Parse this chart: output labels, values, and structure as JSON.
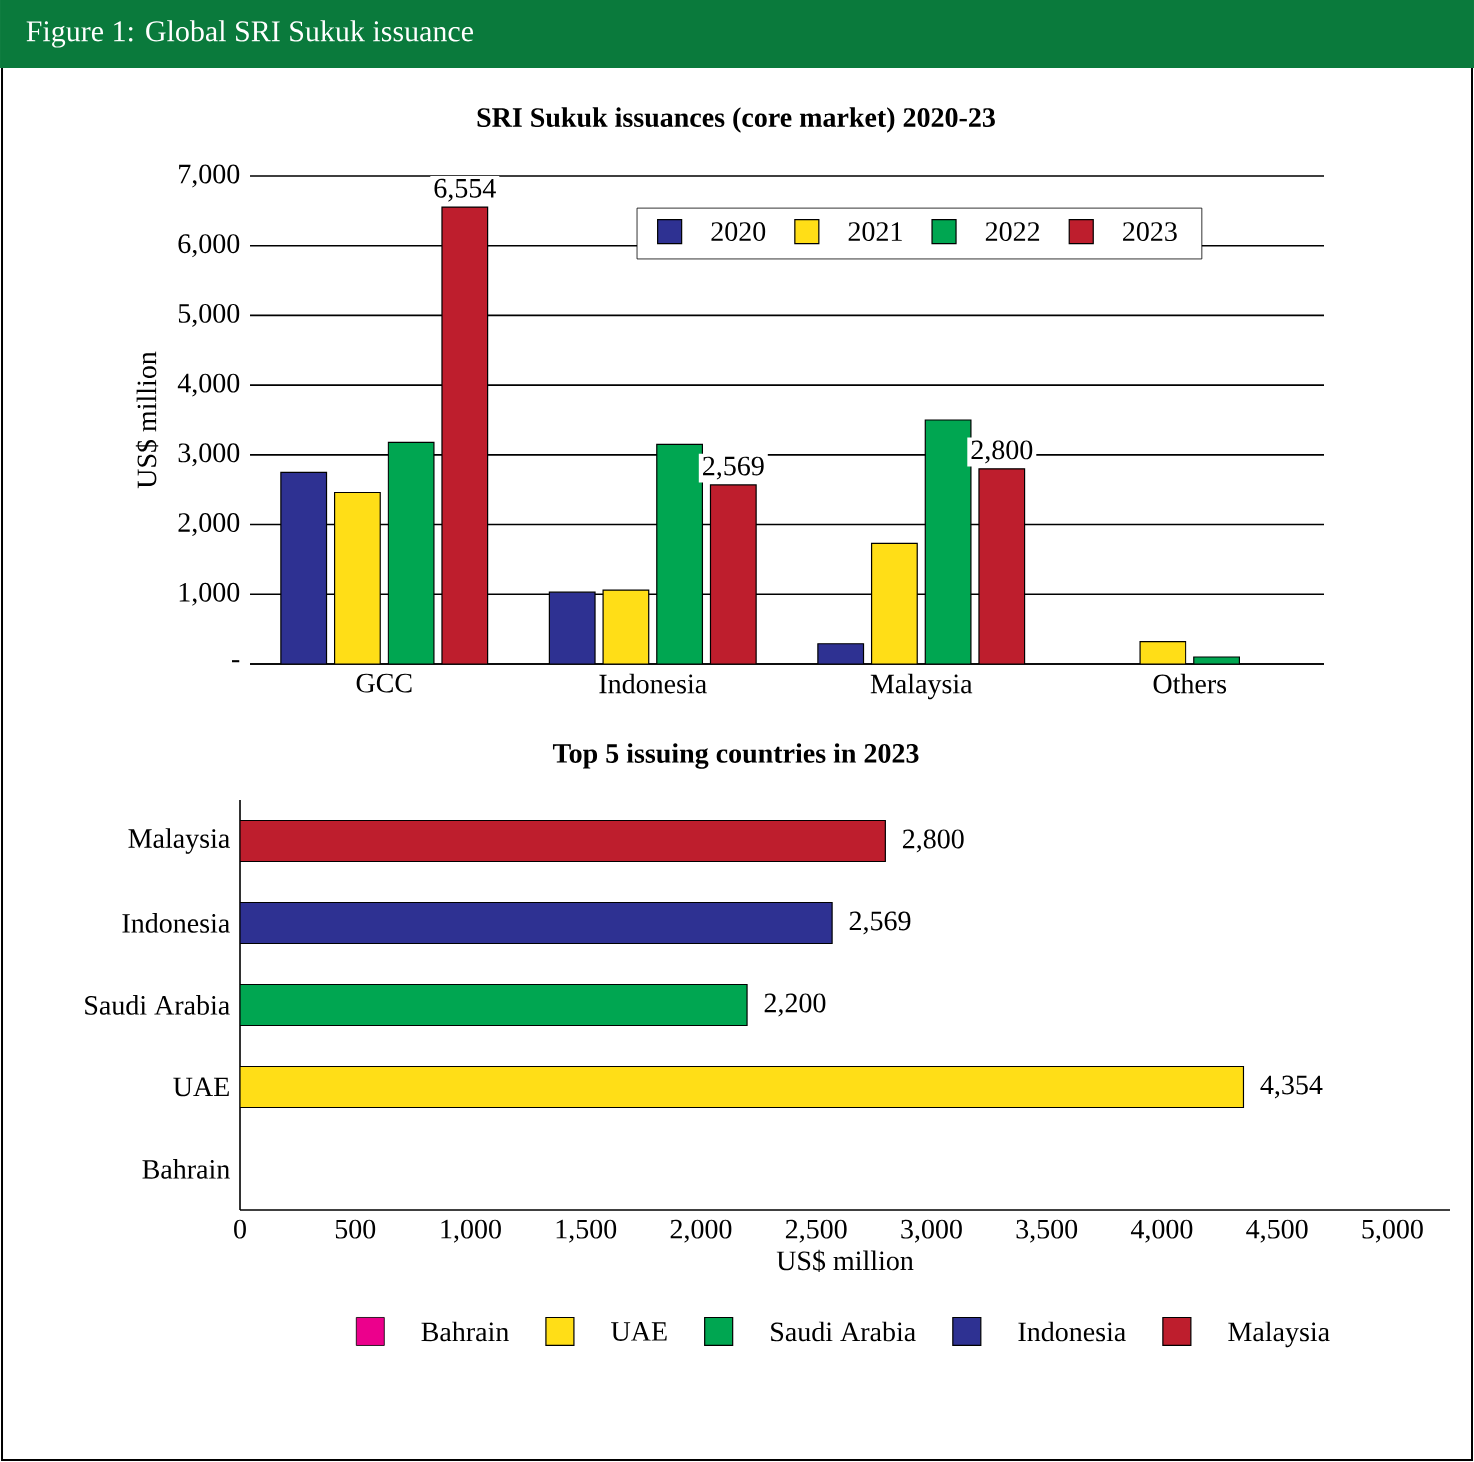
{
  "chart_data": [
    {
      "type": "bar",
      "title": "Figure 1: Global SRI Sukuk issuance",
      "subtitle": "SRI Sukuk  issuances (core market) 2020-23",
      "ylabel": "US$ million",
      "categories": [
        "GCC",
        "Indonesia",
        "Malaysia",
        "Others"
      ],
      "series": [
        {
          "name": "2020",
          "color": "#2e3192",
          "values": [
            2750,
            1030,
            290,
            null
          ]
        },
        {
          "name": "2021",
          "color": "#ffde17",
          "values": [
            2460,
            1060,
            1730,
            320
          ]
        },
        {
          "name": "2022",
          "color": "#00a651",
          "values": [
            3180,
            3150,
            3500,
            100
          ]
        },
        {
          "name": "2023",
          "color": "#be1e2d",
          "values": [
            6554,
            2569,
            2800,
            null
          ],
          "value_labels": [
            "6,554",
            "2,569",
            "2,800",
            null
          ]
        }
      ],
      "ylim": [
        0,
        7000
      ],
      "yticks": [
        {
          "value": 0,
          "label": "-"
        },
        {
          "value": 1000,
          "label": "1,000"
        },
        {
          "value": 2000,
          "label": "2,000"
        },
        {
          "value": 3000,
          "label": "3,000"
        },
        {
          "value": 4000,
          "label": "4,000"
        },
        {
          "value": 5000,
          "label": "5,000"
        },
        {
          "value": 6000,
          "label": "6,000"
        },
        {
          "value": 7000,
          "label": "7,000"
        }
      ],
      "grid": "y",
      "legend": "top"
    },
    {
      "type": "bar",
      "orientation": "horizontal",
      "title": "Top 5 issuing countries in 2023",
      "xlabel": "US$ million",
      "categories": [
        "Malaysia",
        "Indonesia",
        "Saudi Arabia",
        "UAE",
        "Bahrain"
      ],
      "stacked": true,
      "series": [
        {
          "name": "Bahrain",
          "color": "#ec008c",
          "values": [
            null,
            null,
            null,
            null,
            null
          ]
        },
        {
          "name": "UAE",
          "color": "#ffde17",
          "values": [
            null,
            null,
            null,
            4354,
            null
          ],
          "value_labels": [
            null,
            null,
            null,
            "4,354",
            null
          ]
        },
        {
          "name": "Saudi Arabia",
          "color": "#00a651",
          "values": [
            null,
            null,
            2200,
            null,
            null
          ],
          "value_labels": [
            null,
            null,
            "2,200",
            null,
            null
          ]
        },
        {
          "name": "Indonesia",
          "color": "#2e3192",
          "values": [
            null,
            2569,
            null,
            null,
            null
          ],
          "value_labels": [
            null,
            "2,569",
            null,
            null,
            null
          ]
        },
        {
          "name": "Malaysia",
          "color": "#be1e2d",
          "values": [
            2800,
            null,
            null,
            null,
            null
          ],
          "value_labels": [
            "2,800",
            null,
            null,
            null,
            null
          ]
        }
      ],
      "xlim": [
        0,
        5250
      ],
      "xticks": [
        0,
        500,
        {
          "value": 1000,
          "label": "1,000"
        },
        {
          "value": 1500,
          "label": "1,500"
        },
        {
          "value": 2000,
          "label": "2,000"
        },
        {
          "value": 2500,
          "label": "2,500"
        },
        {
          "value": 3000,
          "label": "3,000"
        },
        {
          "value": 3500,
          "label": "3,500"
        },
        {
          "value": 4000,
          "label": "4,000"
        },
        {
          "value": 4500,
          "label": "4,500"
        },
        {
          "value": 5000,
          "label": "5,000"
        }
      ],
      "legend": "bottom"
    }
  ]
}
